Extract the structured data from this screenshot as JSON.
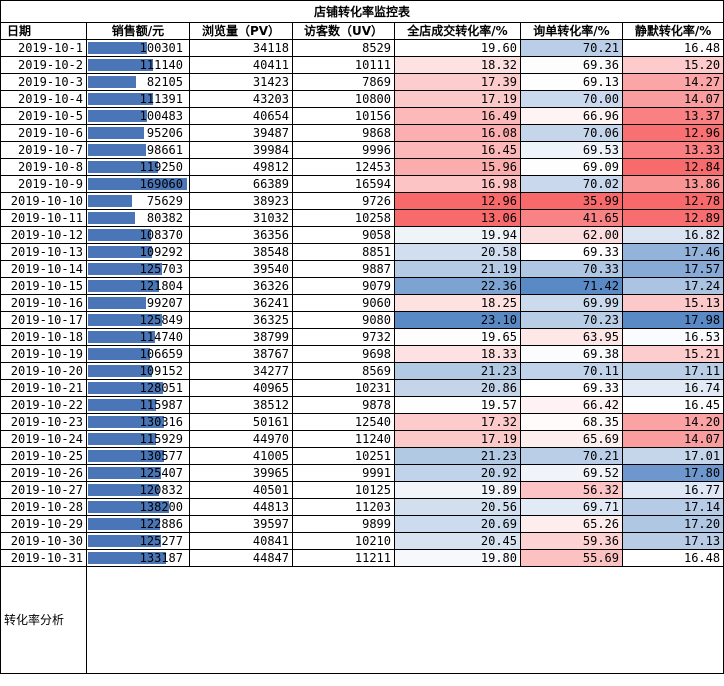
{
  "title": "店铺转化率监控表",
  "headers": {
    "date": "日期",
    "sales": "销售额/元",
    "pv": "浏览量（PV）",
    "uv": "访客数（UV）",
    "store_conv": "全店成交转化率/%",
    "inquiry_conv": "询单转化率/%",
    "silent_conv": "静默转化率/%"
  },
  "analysis_label": "转化率分析",
  "rows": [
    {
      "date": "2019-10-1",
      "sales": "100301",
      "pv": "34118",
      "uv": "8529",
      "store": "19.60",
      "inquiry": "70.21",
      "silent": "16.48"
    },
    {
      "date": "2019-10-2",
      "sales": "111140",
      "pv": "40411",
      "uv": "10111",
      "store": "18.32",
      "inquiry": "69.36",
      "silent": "15.20"
    },
    {
      "date": "2019-10-3",
      "sales": "82105",
      "pv": "31423",
      "uv": "7869",
      "store": "17.39",
      "inquiry": "69.13",
      "silent": "14.27"
    },
    {
      "date": "2019-10-4",
      "sales": "111391",
      "pv": "43203",
      "uv": "10800",
      "store": "17.19",
      "inquiry": "70.00",
      "silent": "14.07"
    },
    {
      "date": "2019-10-5",
      "sales": "100483",
      "pv": "40654",
      "uv": "10156",
      "store": "16.49",
      "inquiry": "66.96",
      "silent": "13.37"
    },
    {
      "date": "2019-10-6",
      "sales": "95206",
      "pv": "39487",
      "uv": "9868",
      "store": "16.08",
      "inquiry": "70.06",
      "silent": "12.96"
    },
    {
      "date": "2019-10-7",
      "sales": "98661",
      "pv": "39984",
      "uv": "9996",
      "store": "16.45",
      "inquiry": "69.53",
      "silent": "13.33"
    },
    {
      "date": "2019-10-8",
      "sales": "119250",
      "pv": "49812",
      "uv": "12453",
      "store": "15.96",
      "inquiry": "69.09",
      "silent": "12.84"
    },
    {
      "date": "2019-10-9",
      "sales": "169060",
      "pv": "66389",
      "uv": "16594",
      "store": "16.98",
      "inquiry": "70.02",
      "silent": "13.86"
    },
    {
      "date": "2019-10-10",
      "sales": "75629",
      "pv": "38923",
      "uv": "9726",
      "store": "12.96",
      "inquiry": "35.99",
      "silent": "12.78"
    },
    {
      "date": "2019-10-11",
      "sales": "80382",
      "pv": "31032",
      "uv": "10258",
      "store": "13.06",
      "inquiry": "41.65",
      "silent": "12.89"
    },
    {
      "date": "2019-10-12",
      "sales": "108370",
      "pv": "36356",
      "uv": "9058",
      "store": "19.94",
      "inquiry": "62.00",
      "silent": "16.82"
    },
    {
      "date": "2019-10-13",
      "sales": "109292",
      "pv": "38548",
      "uv": "8851",
      "store": "20.58",
      "inquiry": "69.33",
      "silent": "17.46"
    },
    {
      "date": "2019-10-14",
      "sales": "125703",
      "pv": "39540",
      "uv": "9887",
      "store": "21.19",
      "inquiry": "70.33",
      "silent": "17.57"
    },
    {
      "date": "2019-10-15",
      "sales": "121804",
      "pv": "36326",
      "uv": "9079",
      "store": "22.36",
      "inquiry": "71.42",
      "silent": "17.24"
    },
    {
      "date": "2019-10-16",
      "sales": "99207",
      "pv": "36241",
      "uv": "9060",
      "store": "18.25",
      "inquiry": "69.99",
      "silent": "15.13"
    },
    {
      "date": "2019-10-17",
      "sales": "125849",
      "pv": "36325",
      "uv": "9080",
      "store": "23.10",
      "inquiry": "70.23",
      "silent": "17.98"
    },
    {
      "date": "2019-10-18",
      "sales": "114740",
      "pv": "38799",
      "uv": "9732",
      "store": "19.65",
      "inquiry": "63.95",
      "silent": "16.53"
    },
    {
      "date": "2019-10-19",
      "sales": "106659",
      "pv": "38767",
      "uv": "9698",
      "store": "18.33",
      "inquiry": "69.38",
      "silent": "15.21"
    },
    {
      "date": "2019-10-20",
      "sales": "109152",
      "pv": "34277",
      "uv": "8569",
      "store": "21.23",
      "inquiry": "70.11",
      "silent": "17.11"
    },
    {
      "date": "2019-10-21",
      "sales": "128051",
      "pv": "40965",
      "uv": "10231",
      "store": "20.86",
      "inquiry": "69.33",
      "silent": "16.74"
    },
    {
      "date": "2019-10-22",
      "sales": "115987",
      "pv": "38512",
      "uv": "9878",
      "store": "19.57",
      "inquiry": "66.42",
      "silent": "16.45"
    },
    {
      "date": "2019-10-23",
      "sales": "130316",
      "pv": "50161",
      "uv": "12540",
      "store": "17.32",
      "inquiry": "68.35",
      "silent": "14.20"
    },
    {
      "date": "2019-10-24",
      "sales": "115929",
      "pv": "44970",
      "uv": "11240",
      "store": "17.19",
      "inquiry": "65.69",
      "silent": "14.07"
    },
    {
      "date": "2019-10-25",
      "sales": "130577",
      "pv": "41005",
      "uv": "10251",
      "store": "21.23",
      "inquiry": "70.21",
      "silent": "17.01"
    },
    {
      "date": "2019-10-26",
      "sales": "125407",
      "pv": "39965",
      "uv": "9991",
      "store": "20.92",
      "inquiry": "69.52",
      "silent": "17.80"
    },
    {
      "date": "2019-10-27",
      "sales": "120832",
      "pv": "40501",
      "uv": "10125",
      "store": "19.89",
      "inquiry": "56.32",
      "silent": "16.77"
    },
    {
      "date": "2019-10-28",
      "sales": "138200",
      "pv": "44813",
      "uv": "11203",
      "store": "20.56",
      "inquiry": "69.71",
      "silent": "17.14"
    },
    {
      "date": "2019-10-29",
      "sales": "122886",
      "pv": "39597",
      "uv": "9899",
      "store": "20.69",
      "inquiry": "65.26",
      "silent": "17.20"
    },
    {
      "date": "2019-10-30",
      "sales": "125277",
      "pv": "40841",
      "uv": "10210",
      "store": "20.45",
      "inquiry": "59.36",
      "silent": "17.13"
    },
    {
      "date": "2019-10-31",
      "sales": "133187",
      "pv": "44847",
      "uv": "11211",
      "store": "19.80",
      "inquiry": "55.69",
      "silent": "16.48"
    }
  ],
  "colors": {
    "low": "#f8696b",
    "mid": "#ffffff",
    "high": "#5a8ac6",
    "bar": "#4a76b8"
  }
}
